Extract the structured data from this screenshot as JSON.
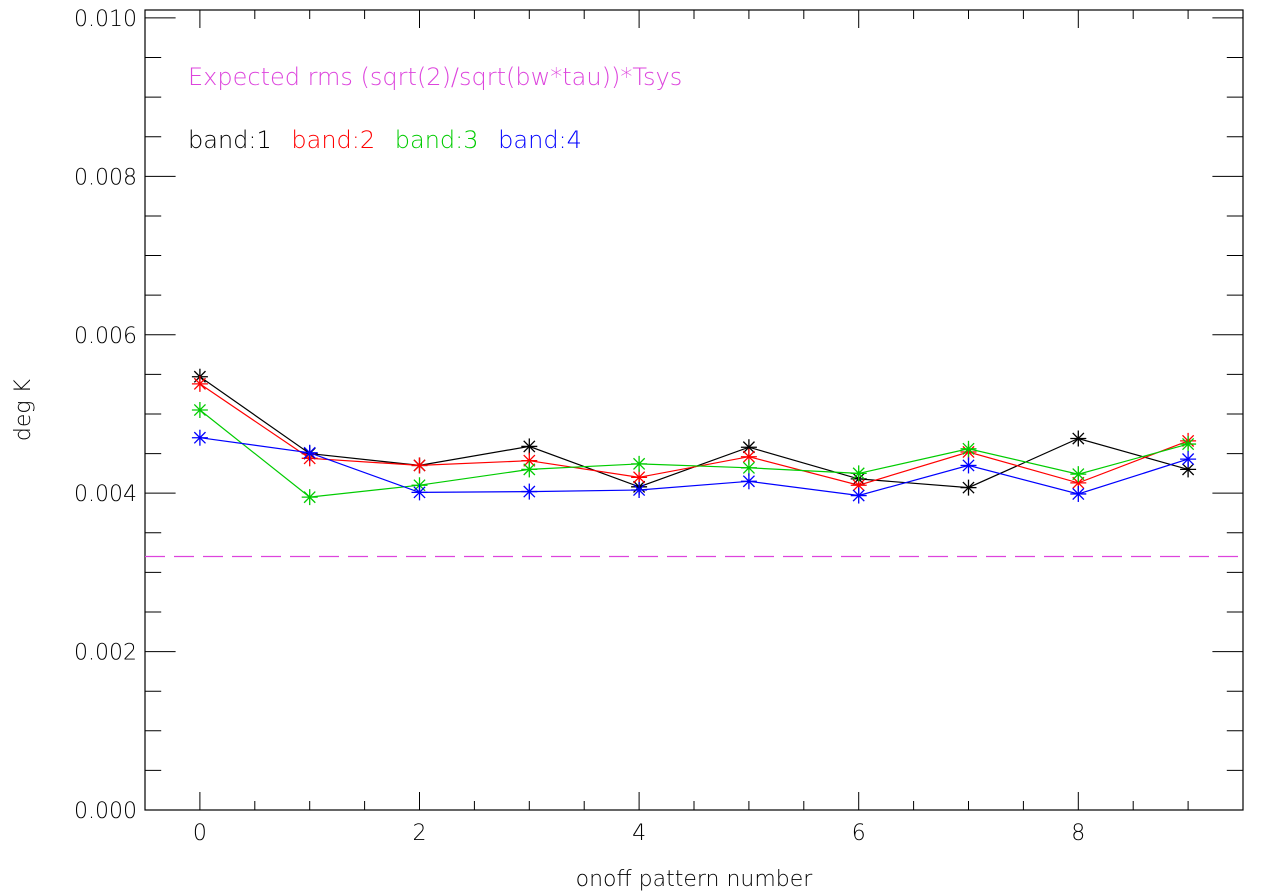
{
  "chart_data": {
    "type": "line",
    "title": "",
    "xlabel": "onoff pattern number",
    "ylabel": "deg K",
    "xlim": [
      -0.5,
      9.5
    ],
    "ylim": [
      0.0,
      0.0101
    ],
    "x_ticks": [
      0,
      2,
      4,
      6,
      8
    ],
    "x_tick_labels": [
      "0",
      "2",
      "4",
      "6",
      "8"
    ],
    "y_ticks": [
      0.0,
      0.002,
      0.004,
      0.006,
      0.008,
      0.01
    ],
    "y_tick_labels": [
      "0.000",
      "0.002",
      "0.004",
      "0.006",
      "0.008",
      "0.010"
    ],
    "grid": false,
    "marker": "asterisk",
    "x": [
      0,
      1,
      2,
      3,
      4,
      5,
      6,
      7,
      8,
      9
    ],
    "series": [
      {
        "name": "band:1",
        "color": "#000000",
        "values": [
          0.00547,
          0.0045,
          0.00435,
          0.00459,
          0.00408,
          0.00458,
          0.00418,
          0.00407,
          0.00469,
          0.0043
        ]
      },
      {
        "name": "band:2",
        "color": "#ff0000",
        "values": [
          0.00538,
          0.00444,
          0.00435,
          0.00441,
          0.0042,
          0.00446,
          0.0041,
          0.00452,
          0.00413,
          0.00466
        ]
      },
      {
        "name": "band:3",
        "color": "#00cc00",
        "values": [
          0.00505,
          0.00395,
          0.0041,
          0.0043,
          0.00437,
          0.00432,
          0.00425,
          0.00456,
          0.00424,
          0.00462
        ]
      },
      {
        "name": "band:4",
        "color": "#0000ff",
        "values": [
          0.0047,
          0.00451,
          0.00401,
          0.00402,
          0.00404,
          0.00415,
          0.00397,
          0.00435,
          0.00399,
          0.00443
        ]
      }
    ],
    "reference_line": {
      "label": "Expected rms (sqrt(2)/sqrt(bw*tau))*Tsys",
      "value": 0.0032,
      "color": "#dd44dd",
      "style": "dashed"
    },
    "legend_placement": "top-left"
  }
}
